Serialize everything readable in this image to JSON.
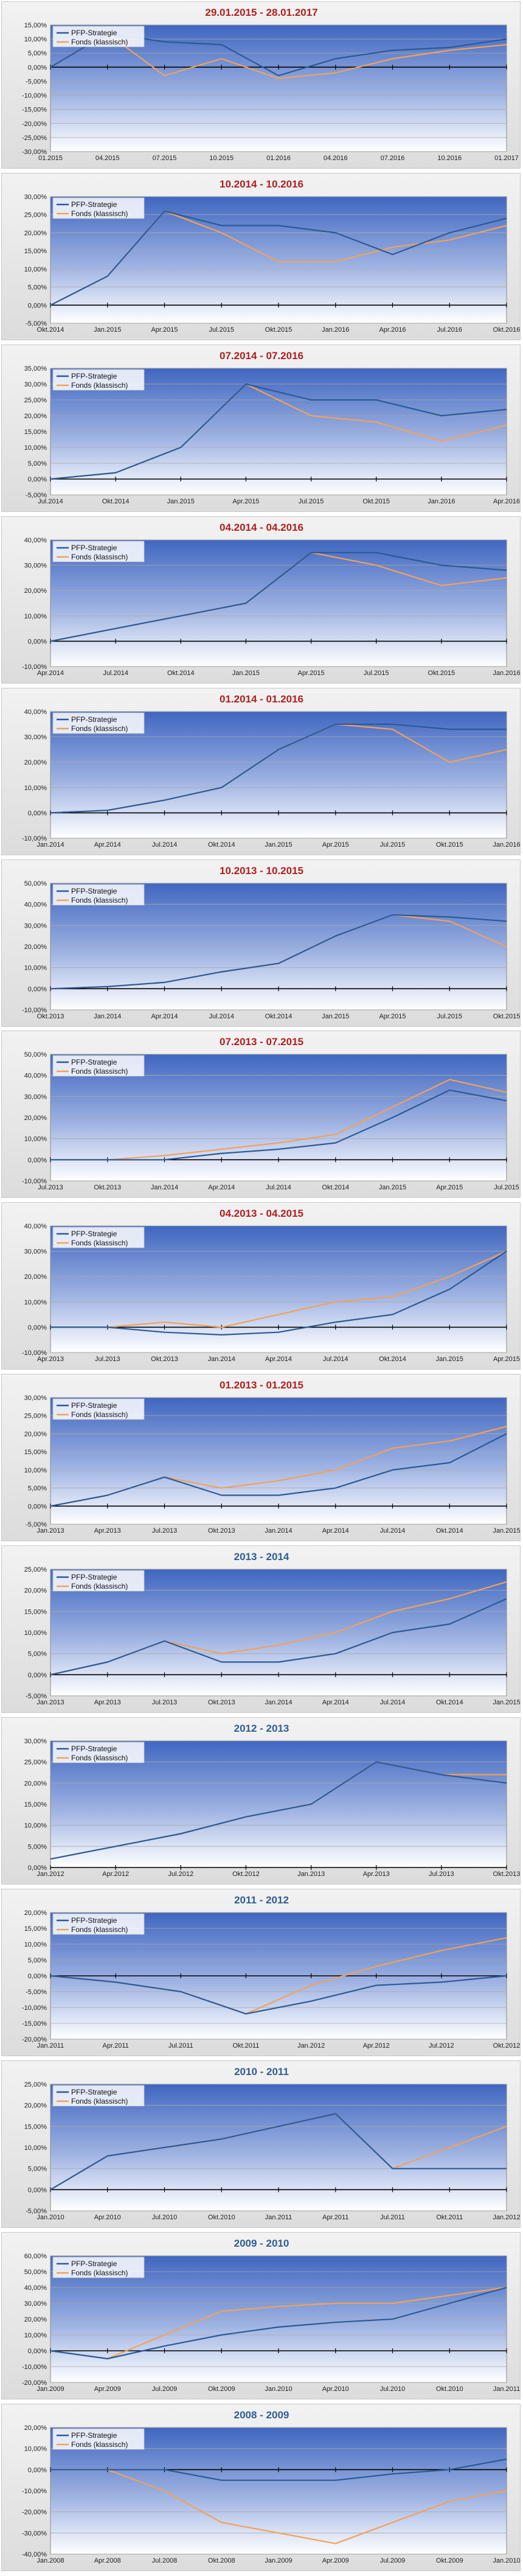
{
  "legend": {
    "series_a": "PFP-Strategie",
    "series_b": "Fonds (klassisch)"
  },
  "colors": {
    "strategy": "#2a5a97",
    "fund": "#f2a15a",
    "title_red": "#b11d1d",
    "title_blue": "#2f5c94"
  },
  "chart_data": [
    {
      "type": "line",
      "title": "29.01.2015 - 28.01.2017",
      "title_color": "red",
      "x": [
        "01.2015",
        "04.2015",
        "07.2015",
        "10.2015",
        "01.2016",
        "04.2016",
        "07.2016",
        "10.2016",
        "01.2017"
      ],
      "ylim": [
        -30,
        15
      ],
      "yticks": [
        -30,
        -25,
        -20,
        -15,
        -10,
        -5,
        0,
        5,
        10,
        15
      ],
      "series": [
        {
          "name": "PFP-Strategie",
          "values": [
            0,
            12,
            9,
            8,
            -3,
            3,
            6,
            7,
            10
          ]
        },
        {
          "name": "Fonds (klassisch)",
          "values": [
            0,
            12,
            -3,
            3,
            -4,
            -2,
            3,
            6,
            8
          ]
        }
      ]
    },
    {
      "type": "line",
      "title": "10.2014 - 10.2016",
      "title_color": "red",
      "x": [
        "Okt.2014",
        "Jan.2015",
        "Apr.2015",
        "Jul.2015",
        "Okt.2015",
        "Jan.2016",
        "Apr.2016",
        "Jul.2016",
        "Okt.2016"
      ],
      "ylim": [
        -5,
        30
      ],
      "yticks": [
        -5,
        0,
        5,
        10,
        15,
        20,
        25,
        30
      ],
      "series": [
        {
          "name": "PFP-Strategie",
          "values": [
            0,
            8,
            26,
            22,
            22,
            20,
            14,
            20,
            24
          ]
        },
        {
          "name": "Fonds (klassisch)",
          "values": [
            0,
            8,
            26,
            20,
            12,
            12,
            16,
            18,
            22
          ]
        }
      ]
    },
    {
      "type": "line",
      "title": "07.2014 - 07.2016",
      "title_color": "red",
      "x": [
        "Jul.2014",
        "Okt.2014",
        "Jan.2015",
        "Apr.2015",
        "Jul.2015",
        "Okt.2015",
        "Jan.2016",
        "Apr.2016"
      ],
      "ylim": [
        -5,
        35
      ],
      "yticks": [
        -5,
        0,
        5,
        10,
        15,
        20,
        25,
        30,
        35
      ],
      "series": [
        {
          "name": "PFP-Strategie",
          "values": [
            0,
            2,
            10,
            30,
            25,
            25,
            20,
            22
          ]
        },
        {
          "name": "Fonds (klassisch)",
          "values": [
            0,
            2,
            10,
            30,
            20,
            18,
            12,
            17
          ]
        }
      ]
    },
    {
      "type": "line",
      "title": "04.2014 - 04.2016",
      "title_color": "red",
      "x": [
        "Apr.2014",
        "Jul.2014",
        "Okt.2014",
        "Jan.2015",
        "Apr.2015",
        "Jul.2015",
        "Okt.2015",
        "Jan.2016"
      ],
      "ylim": [
        -10,
        40
      ],
      "yticks": [
        -10,
        0,
        10,
        20,
        30,
        40
      ],
      "series": [
        {
          "name": "PFP-Strategie",
          "values": [
            0,
            5,
            10,
            15,
            35,
            35,
            30,
            28
          ]
        },
        {
          "name": "Fonds (klassisch)",
          "values": [
            0,
            5,
            10,
            15,
            35,
            30,
            22,
            25
          ]
        }
      ]
    },
    {
      "type": "line",
      "title": "01.2014 - 01.2016",
      "title_color": "red",
      "x": [
        "Jan.2014",
        "Apr.2014",
        "Jul.2014",
        "Okt.2014",
        "Jan.2015",
        "Apr.2015",
        "Jul.2015",
        "Okt.2015",
        "Jan.2016"
      ],
      "ylim": [
        -10,
        40
      ],
      "yticks": [
        -10,
        0,
        10,
        20,
        30,
        40
      ],
      "series": [
        {
          "name": "PFP-Strategie",
          "values": [
            0,
            1,
            5,
            10,
            25,
            35,
            35,
            33,
            33
          ]
        },
        {
          "name": "Fonds (klassisch)",
          "values": [
            0,
            1,
            5,
            10,
            25,
            35,
            33,
            20,
            25
          ]
        }
      ]
    },
    {
      "type": "line",
      "title": "10.2013 - 10.2015",
      "title_color": "red",
      "x": [
        "Okt.2013",
        "Jan.2014",
        "Apr.2014",
        "Jul.2014",
        "Okt.2014",
        "Jan.2015",
        "Apr.2015",
        "Jul.2015",
        "Okt.2015"
      ],
      "ylim": [
        -10,
        50
      ],
      "yticks": [
        -10,
        0,
        10,
        20,
        30,
        40,
        50
      ],
      "series": [
        {
          "name": "PFP-Strategie",
          "values": [
            0,
            1,
            3,
            8,
            12,
            25,
            35,
            34,
            32
          ]
        },
        {
          "name": "Fonds (klassisch)",
          "values": [
            0,
            1,
            3,
            8,
            12,
            25,
            35,
            32,
            20
          ]
        }
      ]
    },
    {
      "type": "line",
      "title": "07.2013 - 07.2015",
      "title_color": "red",
      "x": [
        "Jul.2013",
        "Okt.2013",
        "Jan.2014",
        "Apr.2014",
        "Jul.2014",
        "Okt.2014",
        "Jan.2015",
        "Apr.2015",
        "Jul.2015"
      ],
      "ylim": [
        -10,
        50
      ],
      "yticks": [
        -10,
        0,
        10,
        20,
        30,
        40,
        50
      ],
      "series": [
        {
          "name": "PFP-Strategie",
          "values": [
            0,
            0,
            0,
            3,
            5,
            8,
            20,
            33,
            28
          ]
        },
        {
          "name": "Fonds (klassisch)",
          "values": [
            0,
            0,
            2,
            5,
            8,
            12,
            25,
            38,
            32
          ]
        }
      ]
    },
    {
      "type": "line",
      "title": "04.2013 - 04.2015",
      "title_color": "red",
      "x": [
        "Apr.2013",
        "Jul.2013",
        "Okt.2013",
        "Jan.2014",
        "Apr.2014",
        "Jul.2014",
        "Okt.2014",
        "Jan.2015",
        "Apr.2015"
      ],
      "ylim": [
        -10,
        40
      ],
      "yticks": [
        -10,
        0,
        10,
        20,
        30,
        40
      ],
      "series": [
        {
          "name": "PFP-Strategie",
          "values": [
            0,
            0,
            -2,
            -3,
            -2,
            2,
            5,
            15,
            30
          ]
        },
        {
          "name": "Fonds (klassisch)",
          "values": [
            0,
            0,
            2,
            0,
            5,
            10,
            12,
            20,
            30
          ]
        }
      ]
    },
    {
      "type": "line",
      "title": "01.2013 - 01.2015",
      "title_color": "red",
      "x": [
        "Jan.2013",
        "Apr.2013",
        "Jul.2013",
        "Okt.2013",
        "Jan.2014",
        "Apr.2014",
        "Jul.2014",
        "Okt.2014",
        "Jan.2015"
      ],
      "ylim": [
        -5,
        30
      ],
      "yticks": [
        -5,
        0,
        5,
        10,
        15,
        20,
        25,
        30
      ],
      "series": [
        {
          "name": "PFP-Strategie",
          "values": [
            0,
            3,
            8,
            3,
            3,
            5,
            10,
            12,
            20
          ]
        },
        {
          "name": "Fonds (klassisch)",
          "values": [
            0,
            3,
            8,
            5,
            7,
            10,
            16,
            18,
            22
          ]
        }
      ]
    },
    {
      "type": "line",
      "title": "2013 - 2014",
      "title_color": "blue",
      "x": [
        "Jan.2013",
        "Apr.2013",
        "Jul.2013",
        "Okt.2013",
        "Jan.2014",
        "Apr.2014",
        "Jul.2014",
        "Okt.2014",
        "Jan.2015"
      ],
      "ylim": [
        -5,
        25
      ],
      "yticks": [
        -5,
        0,
        5,
        10,
        15,
        20,
        25
      ],
      "series": [
        {
          "name": "PFP-Strategie",
          "values": [
            0,
            3,
            8,
            3,
            3,
            5,
            10,
            12,
            18
          ]
        },
        {
          "name": "Fonds (klassisch)",
          "values": [
            0,
            3,
            8,
            5,
            7,
            10,
            15,
            18,
            22
          ]
        }
      ]
    },
    {
      "type": "line",
      "title": "2012 - 2013",
      "title_color": "blue",
      "x": [
        "Jan.2012",
        "Apr.2012",
        "Jul.2012",
        "Okt.2012",
        "Jan.2013",
        "Apr.2013",
        "Jul.2013",
        "Okt.2013"
      ],
      "ylim": [
        0,
        30
      ],
      "yticks": [
        0,
        5,
        10,
        15,
        20,
        25,
        30
      ],
      "series": [
        {
          "name": "PFP-Strategie",
          "values": [
            2,
            5,
            8,
            12,
            15,
            25,
            22,
            20
          ]
        },
        {
          "name": "Fonds (klassisch)",
          "values": [
            2,
            5,
            8,
            12,
            15,
            25,
            22,
            22
          ]
        }
      ]
    },
    {
      "type": "line",
      "title": "2011 - 2012",
      "title_color": "blue",
      "x": [
        "Jan.2011",
        "Apr.2011",
        "Jul.2011",
        "Okt.2011",
        "Jan.2012",
        "Apr.2012",
        "Jul.2012",
        "Okt.2012"
      ],
      "ylim": [
        -20,
        20
      ],
      "yticks": [
        -20,
        -15,
        -10,
        -5,
        0,
        5,
        10,
        15,
        20
      ],
      "series": [
        {
          "name": "PFP-Strategie",
          "values": [
            0,
            -2,
            -5,
            -12,
            -8,
            -3,
            -2,
            0
          ]
        },
        {
          "name": "Fonds (klassisch)",
          "values": [
            0,
            -2,
            -5,
            -12,
            -3,
            3,
            8,
            12
          ]
        }
      ]
    },
    {
      "type": "line",
      "title": "2010 - 2011",
      "title_color": "blue",
      "x": [
        "Jan.2010",
        "Apr.2010",
        "Jul.2010",
        "Okt.2010",
        "Jan.2011",
        "Apr.2011",
        "Jul.2011",
        "Okt.2011",
        "Jan.2012"
      ],
      "ylim": [
        -5,
        25
      ],
      "yticks": [
        -5,
        0,
        5,
        10,
        15,
        20,
        25
      ],
      "series": [
        {
          "name": "PFP-Strategie",
          "values": [
            0,
            8,
            10,
            12,
            15,
            18,
            5,
            5,
            5
          ]
        },
        {
          "name": "Fonds (klassisch)",
          "values": [
            0,
            8,
            10,
            12,
            15,
            18,
            5,
            10,
            15
          ]
        }
      ]
    },
    {
      "type": "line",
      "title": "2009 - 2010",
      "title_color": "blue",
      "x": [
        "Jan.2009",
        "Apr.2009",
        "Jul.2009",
        "Okt.2009",
        "Jan.2010",
        "Apr.2010",
        "Jul.2010",
        "Okt.2010",
        "Jan.2011"
      ],
      "ylim": [
        -20,
        60
      ],
      "yticks": [
        -20,
        -10,
        0,
        10,
        20,
        30,
        40,
        50,
        60
      ],
      "series": [
        {
          "name": "PFP-Strategie",
          "values": [
            0,
            -5,
            3,
            10,
            15,
            18,
            20,
            30,
            40
          ]
        },
        {
          "name": "Fonds (klassisch)",
          "values": [
            0,
            -5,
            10,
            25,
            28,
            30,
            30,
            35,
            40
          ]
        }
      ]
    },
    {
      "type": "line",
      "title": "2008 - 2009",
      "title_color": "blue",
      "x": [
        "Jan.2008",
        "Apr.2008",
        "Jul.2008",
        "Okt.2008",
        "Jan.2009",
        "Apr.2009",
        "Jul.2009",
        "Okt.2009",
        "Jan.2010"
      ],
      "ylim": [
        -40,
        20
      ],
      "yticks": [
        -40,
        -30,
        -20,
        -10,
        0,
        10,
        20
      ],
      "series": [
        {
          "name": "PFP-Strategie",
          "values": [
            0,
            0,
            0,
            -5,
            -5,
            -5,
            -2,
            0,
            5
          ]
        },
        {
          "name": "Fonds (klassisch)",
          "values": [
            0,
            0,
            -10,
            -25,
            -30,
            -35,
            -25,
            -15,
            -10
          ]
        }
      ]
    }
  ]
}
